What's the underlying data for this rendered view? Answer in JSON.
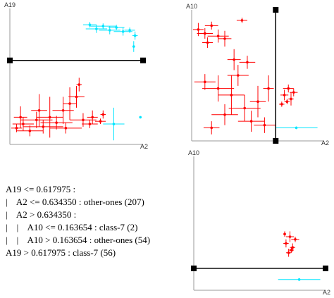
{
  "chart_data": [
    {
      "type": "scatter",
      "x_label": "A2",
      "y_label": "A19",
      "xlim": [
        0,
        1
      ],
      "ylim": [
        0,
        1
      ],
      "splits": [
        {
          "axis": "y",
          "value": 0.617975
        }
      ],
      "series": [
        {
          "color": "#ff0000",
          "x": [
            0.05,
            0.1,
            0.15,
            0.2,
            0.25,
            0.3,
            0.35,
            0.4,
            0.45,
            0.5,
            0.52,
            0.55,
            0.6,
            0.68,
            0.7,
            0.22,
            0.08,
            0.42,
            0.62
          ],
          "y": [
            0.12,
            0.15,
            0.1,
            0.18,
            0.13,
            0.2,
            0.16,
            0.25,
            0.3,
            0.35,
            0.44,
            0.18,
            0.15,
            0.17,
            0.22,
            0.25,
            0.2,
            0.12,
            0.2
          ],
          "xerr": [
            0.04,
            0.08,
            0.1,
            0.12,
            0.15,
            0.1,
            0.12,
            0.08,
            0.05,
            0.06,
            0.02,
            0.1,
            0.06,
            0.04,
            0.02,
            0.06,
            0.05,
            0.12,
            0.04
          ],
          "yerr": [
            0.03,
            0.05,
            0.04,
            0.06,
            0.05,
            0.15,
            0.05,
            0.1,
            0.12,
            0.08,
            0.05,
            0.05,
            0.03,
            0.02,
            0.03,
            0.12,
            0.08,
            0.04,
            0.05
          ]
        },
        {
          "color": "#00e5ff",
          "x": [
            0.6,
            0.65,
            0.7,
            0.75,
            0.8,
            0.85,
            0.9,
            0.93,
            0.94,
            0.78,
            0.98
          ],
          "y": [
            0.88,
            0.85,
            0.87,
            0.84,
            0.86,
            0.83,
            0.84,
            0.72,
            0.8,
            0.15,
            0.2
          ],
          "xerr": [
            0.05,
            0.08,
            0.1,
            0.08,
            0.06,
            0.07,
            0.04,
            0.01,
            0.02,
            0.08,
            0
          ],
          "yerr": [
            0.02,
            0.03,
            0.02,
            0.03,
            0.02,
            0.03,
            0.02,
            0.04,
            0.03,
            0.12,
            0
          ]
        }
      ]
    },
    {
      "type": "scatter",
      "x_label": "A2",
      "y_label": "A10",
      "xlim": [
        0,
        1
      ],
      "ylim": [
        0,
        1
      ],
      "splits": [
        {
          "axis": "x",
          "value": 0.63435
        }
      ],
      "series": [
        {
          "color": "#ff0000",
          "x": [
            0.05,
            0.1,
            0.15,
            0.2,
            0.25,
            0.12,
            0.38,
            0.1,
            0.2,
            0.3,
            0.35,
            0.4,
            0.45,
            0.5,
            0.55,
            0.25,
            0.15,
            0.58,
            0.42,
            0.32,
            0.7,
            0.73,
            0.75,
            0.68,
            0.77,
            0.72
          ],
          "y": [
            0.85,
            0.82,
            0.88,
            0.8,
            0.78,
            0.75,
            0.92,
            0.45,
            0.4,
            0.35,
            0.5,
            0.25,
            0.15,
            0.3,
            0.12,
            0.2,
            0.1,
            0.4,
            0.6,
            0.62,
            0.35,
            0.4,
            0.32,
            0.28,
            0.37,
            0.3
          ],
          "xerr": [
            0.04,
            0.06,
            0.05,
            0.08,
            0.05,
            0.04,
            0.04,
            0.08,
            0.12,
            0.1,
            0.08,
            0.12,
            0.1,
            0.06,
            0.08,
            0.1,
            0.06,
            0.04,
            0.06,
            0.05,
            0.03,
            0.04,
            0.02,
            0.02,
            0.03,
            0.02
          ],
          "yerr": [
            0.05,
            0.04,
            0.03,
            0.05,
            0.06,
            0.04,
            0.02,
            0.06,
            0.1,
            0.15,
            0.08,
            0.1,
            0.08,
            0.12,
            0.06,
            0.08,
            0.05,
            0.1,
            0.05,
            0.08,
            0.04,
            0.03,
            0.05,
            0.02,
            0.03,
            0.02
          ]
        },
        {
          "color": "#00e5ff",
          "x": [
            0.79
          ],
          "y": [
            0.1
          ],
          "xerr": [
            0.16
          ],
          "yerr": [
            0.01
          ]
        }
      ]
    },
    {
      "type": "scatter",
      "x_label": "A2",
      "y_label": "A10",
      "xlim": [
        0,
        1
      ],
      "ylim": [
        0,
        1
      ],
      "splits": [
        {
          "axis": "y",
          "value": 0.163654
        }
      ],
      "series": [
        {
          "color": "#ff0000",
          "x": [
            0.7,
            0.73,
            0.75,
            0.72,
            0.77,
            0.69,
            0.74
          ],
          "y": [
            0.35,
            0.4,
            0.32,
            0.28,
            0.38,
            0.42,
            0.3
          ],
          "xerr": [
            0.02,
            0.03,
            0.02,
            0.02,
            0.03,
            0.01,
            0.02
          ],
          "yerr": [
            0.03,
            0.04,
            0.03,
            0.03,
            0.02,
            0.02,
            0.02
          ]
        },
        {
          "color": "#00e5ff",
          "x": [
            0.8
          ],
          "y": [
            0.08
          ],
          "xerr": [
            0.16
          ],
          "yerr": [
            0.01
          ]
        }
      ]
    }
  ],
  "tree": {
    "lines": [
      "A19 <= 0.617975 :",
      "|    A2 <= 0.634350 : other-ones (207)",
      "|    A2 > 0.634350 :",
      "|    |    A10 <= 0.163654 : class-7 (2)",
      "|    |    A10 > 0.163654 : other-ones (54)",
      "A19 > 0.617975 : class-7 (56)"
    ]
  }
}
